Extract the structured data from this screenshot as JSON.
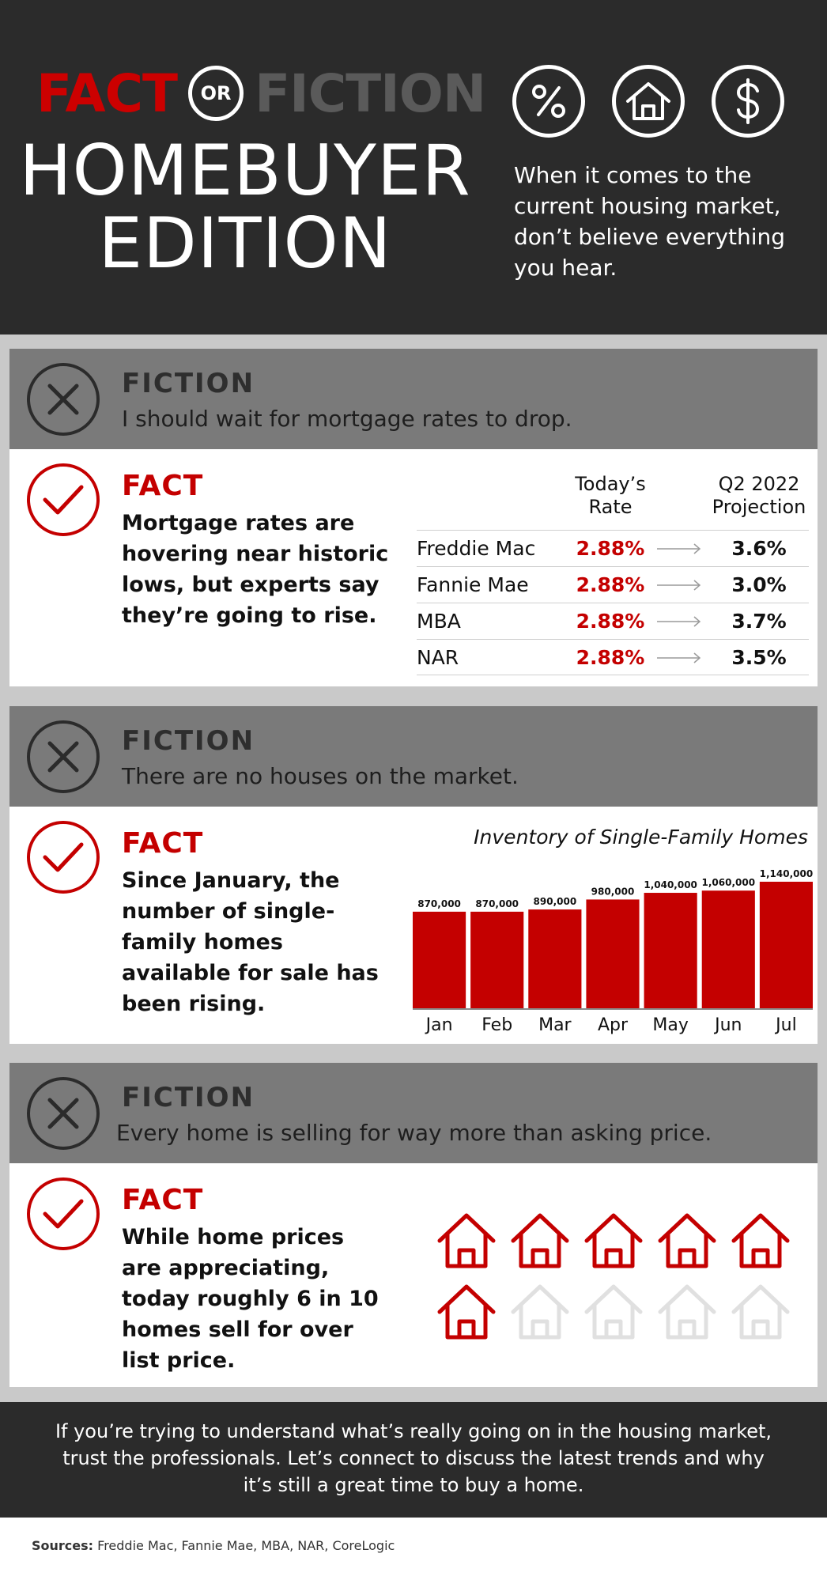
{
  "header": {
    "fact_word": "FACT",
    "or_word": "OR",
    "fiction_word": "FICTION",
    "edition_line1": "HOMEBUYER",
    "edition_line2": "EDITION",
    "intro": "When it comes to the current housing market, don’t believe everything you hear.",
    "icons": [
      "percent-icon",
      "house-icon",
      "dollar-icon"
    ]
  },
  "colors": {
    "red": "#c40000",
    "dark": "#2b2b2b",
    "grey_band": "#7a7a7a",
    "faded_house": "#e0e0e0"
  },
  "sections": [
    {
      "fiction_title": "FICTION",
      "fiction_text": "I should wait for mortgage rates to drop.",
      "fact_title": "FACT",
      "fact_text": "Mortgage rates are hovering near historic lows, but experts say they’re going to rise."
    },
    {
      "fiction_title": "FICTION",
      "fiction_text": "There are no houses on the market.",
      "fact_title": "FACT",
      "fact_text": "Since January, the number of single-family homes available for sale has been rising."
    },
    {
      "fiction_title": "FICTION",
      "fiction_text": "Every home is selling for way more than asking price.",
      "fact_title": "FACT",
      "fact_text": "While home prices are appreciating, today roughly 6 in 10 homes sell for over list price."
    }
  ],
  "rate_table": {
    "col_today": "Today’s Rate",
    "col_today_l1": "Today’s",
    "col_today_l2": "Rate",
    "col_proj_l1": "Q2 2022",
    "col_proj_l2": "Projection",
    "rows": [
      {
        "name": "Freddie Mac",
        "today": "2.88%",
        "proj": "3.6%"
      },
      {
        "name": "Fannie Mae",
        "today": "2.88%",
        "proj": "3.0%"
      },
      {
        "name": "MBA",
        "today": "2.88%",
        "proj": "3.7%"
      },
      {
        "name": "NAR",
        "today": "2.88%",
        "proj": "3.5%"
      }
    ]
  },
  "chart_data": {
    "type": "bar",
    "title": "Inventory of Single-Family Homes",
    "categories": [
      "Jan",
      "Feb",
      "Mar",
      "Apr",
      "May",
      "Jun",
      "Jul"
    ],
    "values": [
      870000,
      870000,
      890000,
      980000,
      1040000,
      1060000,
      1140000
    ],
    "value_labels": [
      "870,000",
      "870,000",
      "890,000",
      "980,000",
      "1,040,000",
      "1,060,000",
      "1,140,000"
    ],
    "ylim": [
      0,
      1140000
    ],
    "grid": false,
    "bar_color": "#c40000"
  },
  "houses": {
    "total": 10,
    "highlighted": 6
  },
  "footer": {
    "text": "If you’re trying to understand what’s really going on in the housing market, trust the professionals. Let’s connect to discuss the latest trends and why it’s still a great time to buy a home.",
    "sources_label": "Sources:",
    "sources_list": "Freddie Mac, Fannie Mae, MBA, NAR, CoreLogic"
  }
}
